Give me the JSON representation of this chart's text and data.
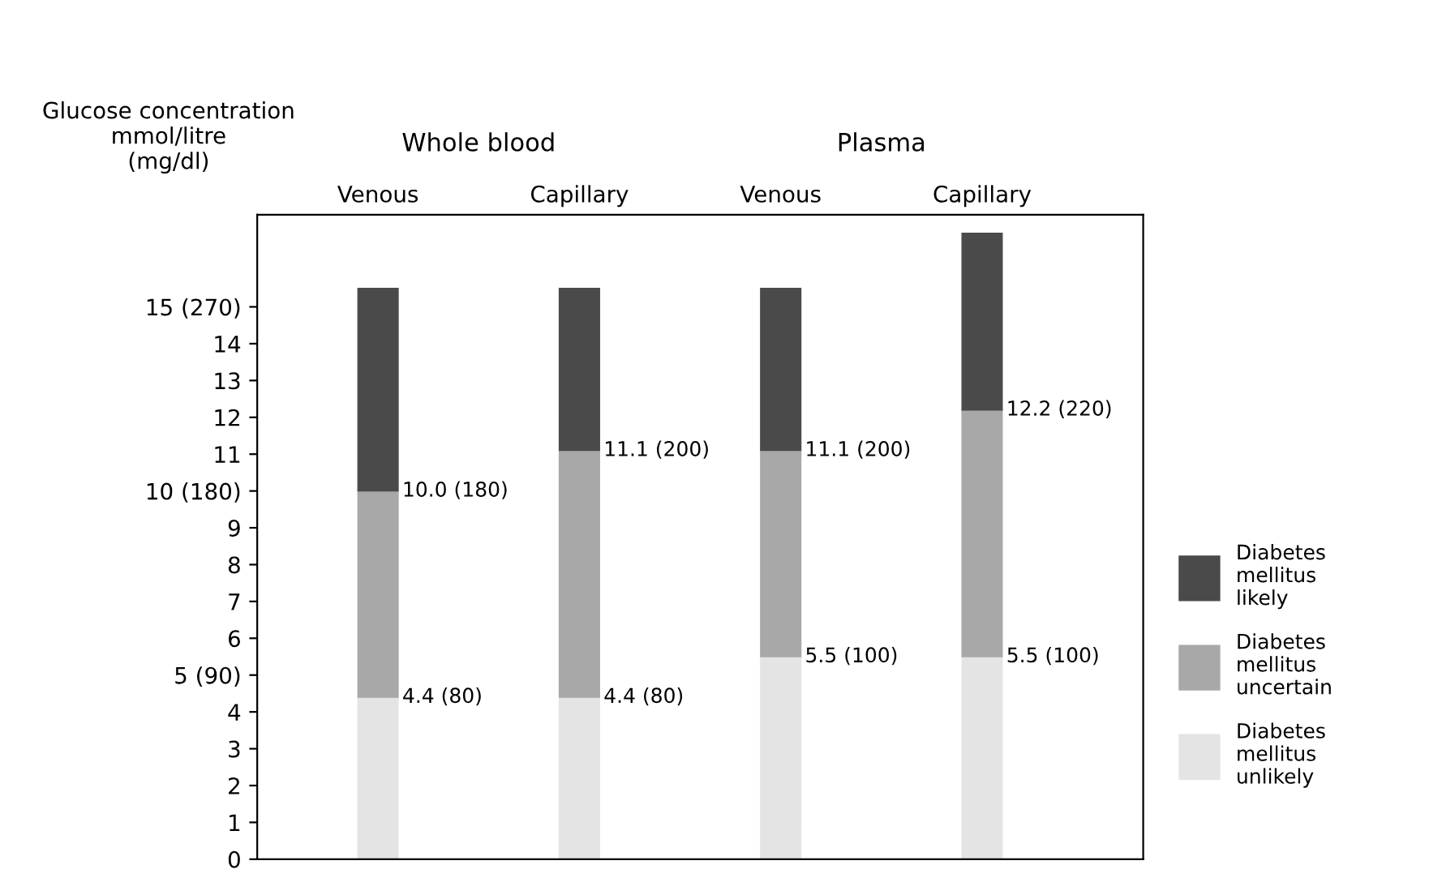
{
  "chart_data": {
    "type": "bar",
    "stacked": true,
    "ylabel": "Glucose concentration\nmmol/litre\n(mg/dl)",
    "categories": [
      "Venous",
      "Capillary",
      "Venous",
      "Capillary"
    ],
    "annotations": [
      "Whole blood",
      "Plasma",
      "4.4 (80)",
      "4.4 (80)",
      "5.5 (100)",
      "5.5 (100)",
      "10.0 (180)",
      "11.1 (200)",
      "11.1 (200)",
      "12.2 (220)"
    ],
    "series": [
      {
        "name": "Diabetes\nmellitus\nunlikely",
        "color": "#e4e4e4",
        "values": [
          4.4,
          4.4,
          5.5,
          5.5
        ]
      },
      {
        "name": "Diabetes\nmellitus\nuncertain",
        "color": "#a8a8a8",
        "values": [
          5.6,
          6.7,
          5.6,
          6.7
        ]
      },
      {
        "name": "Diabetes\nmellitus\nlikely",
        "color": "#4a4a4a",
        "values": [
          5.5,
          4.4,
          4.4,
          4.8
        ]
      }
    ],
    "ylim": [
      0,
      17.5
    ],
    "yticks": [
      0,
      1,
      2,
      3,
      4,
      {
        "value": 5,
        "label": "5 (90)"
      },
      6,
      7,
      8,
      9,
      {
        "value": 10,
        "label": "10 (180)"
      },
      11,
      12,
      13,
      14,
      {
        "value": 15,
        "label": "15 (270)"
      }
    ],
    "legend": "right",
    "grid": false
  }
}
